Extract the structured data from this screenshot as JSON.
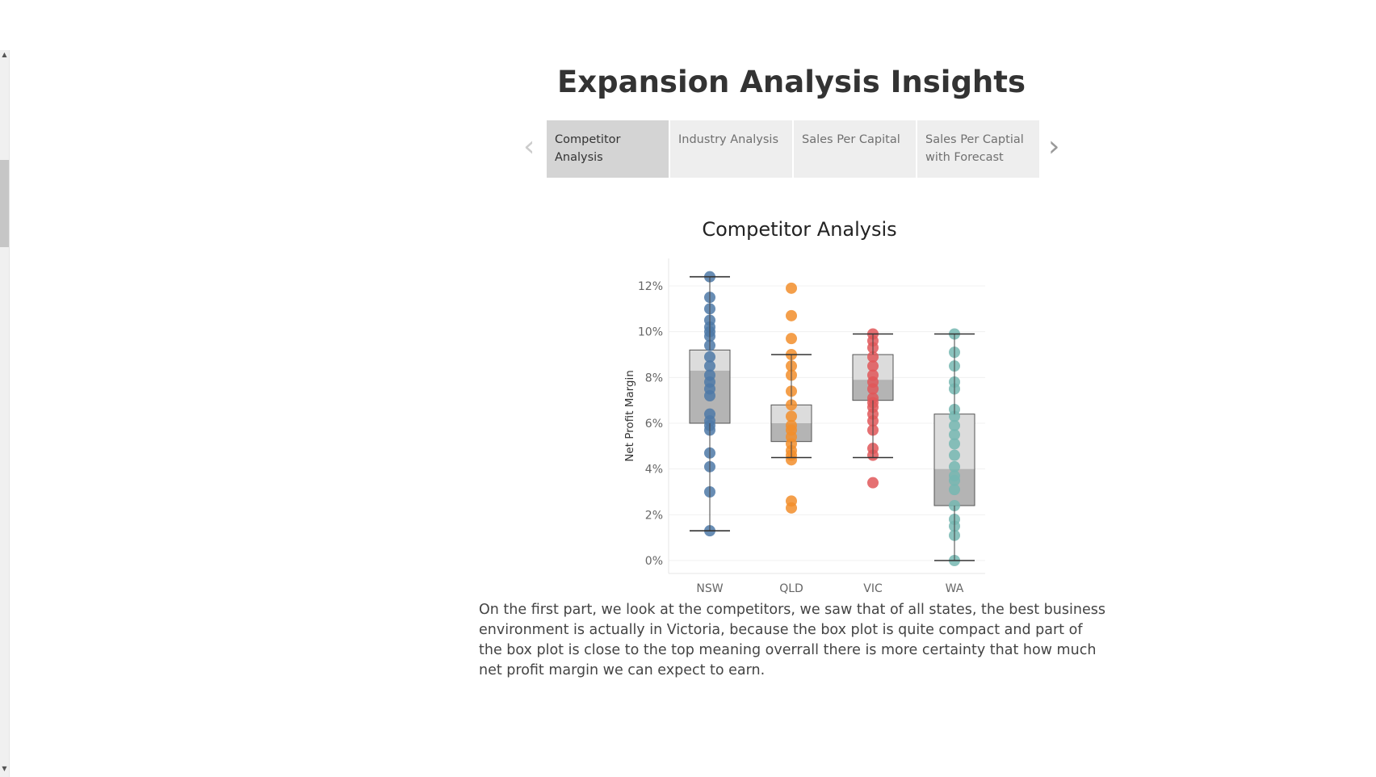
{
  "story": {
    "title": "Expansion Analysis Insights",
    "prev_arrow": "‹",
    "next_arrow": "›",
    "tabs": [
      {
        "label": "Competitor Analysis",
        "active": true
      },
      {
        "label": "Industry Analysis",
        "active": false
      },
      {
        "label": "Sales Per Capital",
        "active": false
      },
      {
        "label": "Sales Per Captial with Forecast",
        "active": false
      }
    ]
  },
  "colors": {
    "NSW": "#4e79a7",
    "QLD": "#f28e2b",
    "VIC": "#e15759",
    "WA": "#76b7b2"
  },
  "chart_data": {
    "type": "scatter",
    "title": "Competitor Analysis",
    "ylabel": "Net Profit Margin",
    "xlabel": "",
    "ylim": [
      0,
      0.13
    ],
    "yticks": [
      {
        "value": 0,
        "label": "0%"
      },
      {
        "value": 0.02,
        "label": "2%"
      },
      {
        "value": 0.04,
        "label": "4%"
      },
      {
        "value": 0.06,
        "label": "6%"
      },
      {
        "value": 0.08,
        "label": "8%"
      },
      {
        "value": 0.1,
        "label": "10%"
      },
      {
        "value": 0.12,
        "label": "12%"
      }
    ],
    "grid": true,
    "categories": [
      "NSW",
      "QLD",
      "VIC",
      "WA"
    ],
    "series": [
      {
        "name": "NSW",
        "values": [
          0.124,
          0.115,
          0.11,
          0.105,
          0.102,
          0.1,
          0.098,
          0.094,
          0.089,
          0.085,
          0.081,
          0.078,
          0.075,
          0.072,
          0.064,
          0.061,
          0.059,
          0.057,
          0.047,
          0.041,
          0.03,
          0.013
        ],
        "box": {
          "min": 0.013,
          "q1": 0.06,
          "median": 0.083,
          "q3": 0.092,
          "max": 0.124
        }
      },
      {
        "name": "QLD",
        "values": [
          0.119,
          0.107,
          0.097,
          0.09,
          0.085,
          0.081,
          0.074,
          0.068,
          0.063,
          0.059,
          0.057,
          0.054,
          0.051,
          0.048,
          0.046,
          0.044,
          0.026,
          0.023
        ],
        "box": {
          "min": 0.045,
          "q1": 0.052,
          "median": 0.06,
          "q3": 0.068,
          "max": 0.09
        }
      },
      {
        "name": "VIC",
        "values": [
          0.099,
          0.096,
          0.093,
          0.089,
          0.085,
          0.081,
          0.078,
          0.075,
          0.071,
          0.069,
          0.067,
          0.064,
          0.061,
          0.057,
          0.049,
          0.046,
          0.034
        ],
        "box": {
          "min": 0.045,
          "q1": 0.07,
          "median": 0.079,
          "q3": 0.09,
          "max": 0.099
        }
      },
      {
        "name": "WA",
        "values": [
          0.099,
          0.091,
          0.085,
          0.078,
          0.075,
          0.066,
          0.063,
          0.059,
          0.055,
          0.051,
          0.046,
          0.041,
          0.037,
          0.035,
          0.031,
          0.024,
          0.018,
          0.015,
          0.011,
          0.0
        ],
        "box": {
          "min": 0.0,
          "q1": 0.024,
          "median": 0.04,
          "q3": 0.064,
          "max": 0.099
        }
      }
    ]
  },
  "caption": "On the first part, we look at the competitors, we saw that of all states, the best business environment is actually in Victoria, because the box plot is quite compact  and part of the box plot is close to the top meaning overrall there is more certainty that how much net profit margin we can expect to earn."
}
